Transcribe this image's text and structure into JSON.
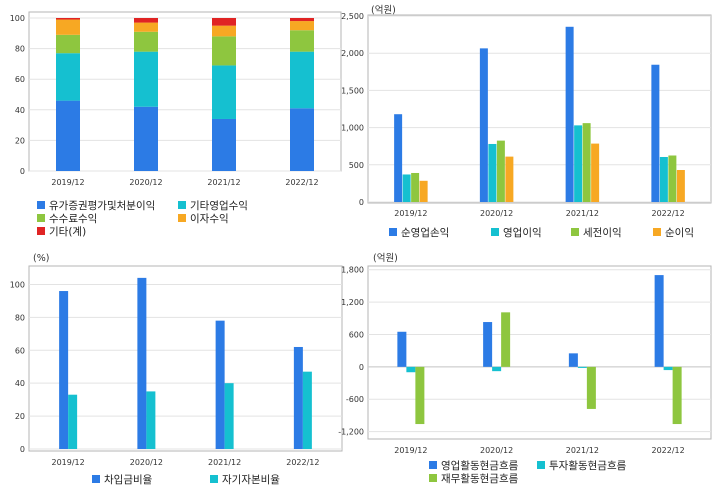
{
  "colors": {
    "blue": "#2c7be5",
    "cyan": "#15c0d0",
    "green": "#8ec63f",
    "orange": "#f7a823",
    "red": "#e02424",
    "grid": "#e3e3e3",
    "frame": "#b5b5b5"
  },
  "chart_data": [
    {
      "type": "bar",
      "stacked": true,
      "title": "",
      "unit": "",
      "categories": [
        "2019/12",
        "2020/12",
        "2021/12",
        "2022/12"
      ],
      "ylim": [
        0,
        100
      ],
      "yticks": [
        0,
        20,
        40,
        60,
        80,
        100
      ],
      "ytick_labels": [
        "0",
        "20",
        "40",
        "60",
        "80",
        "100"
      ],
      "grid": true,
      "legend_position": "bottom",
      "series": [
        {
          "name": "유가증권평가및처분이익",
          "color": "#2c7be5",
          "values": [
            46,
            42,
            34,
            41
          ]
        },
        {
          "name": "기타영업수익",
          "color": "#15c0d0",
          "values": [
            31,
            36,
            35,
            37
          ]
        },
        {
          "name": "수수료수익",
          "color": "#8ec63f",
          "values": [
            12,
            13,
            19,
            14
          ]
        },
        {
          "name": "이자수익",
          "color": "#f7a823",
          "values": [
            10,
            6,
            7,
            6
          ]
        },
        {
          "name": "기타(계)",
          "color": "#e02424",
          "values": [
            1,
            3,
            5,
            2
          ]
        }
      ]
    },
    {
      "type": "bar",
      "title": "",
      "unit": "(억원)",
      "categories": [
        "2019/12",
        "2020/12",
        "2021/12",
        "2022/12"
      ],
      "ylim": [
        0,
        2500
      ],
      "yticks": [
        0,
        500,
        1000,
        1500,
        2000,
        2500
      ],
      "ytick_labels": [
        "0",
        "500",
        "1,000",
        "1,500",
        "2,000",
        "2,500"
      ],
      "grid": true,
      "legend_position": "bottom",
      "series": [
        {
          "name": "순영업손익",
          "color": "#2c7be5",
          "values": [
            1180,
            2065,
            2355,
            1845
          ]
        },
        {
          "name": "영업이익",
          "color": "#15c0d0",
          "values": [
            370,
            780,
            1030,
            605
          ]
        },
        {
          "name": "세전이익",
          "color": "#8ec63f",
          "values": [
            390,
            825,
            1060,
            625
          ]
        },
        {
          "name": "순이익",
          "color": "#f7a823",
          "values": [
            285,
            610,
            785,
            430
          ]
        }
      ]
    },
    {
      "type": "bar",
      "title": "",
      "unit": "(%)",
      "categories": [
        "2019/12",
        "2020/12",
        "2021/12",
        "2022/12"
      ],
      "ylim": [
        0,
        110
      ],
      "yticks": [
        0,
        20,
        40,
        60,
        80,
        100
      ],
      "ytick_labels": [
        "0",
        "20",
        "40",
        "60",
        "80",
        "100"
      ],
      "grid": true,
      "legend_position": "bottom",
      "series": [
        {
          "name": "차입금비율",
          "color": "#2c7be5",
          "values": [
            96,
            104,
            78,
            62
          ]
        },
        {
          "name": "자기자본비율",
          "color": "#15c0d0",
          "values": [
            33,
            35,
            40,
            47
          ]
        }
      ]
    },
    {
      "type": "bar",
      "title": "",
      "unit": "(억원)",
      "categories": [
        "2019/12",
        "2020/12",
        "2021/12",
        "2022/12"
      ],
      "ylim": [
        -1300,
        1850
      ],
      "yticks": [
        -1200,
        -600,
        0,
        600,
        1200,
        1800
      ],
      "ytick_labels": [
        "-1,200",
        "-600",
        "0",
        "600",
        "1,200",
        "1,800"
      ],
      "grid": true,
      "legend_position": "bottom",
      "series": [
        {
          "name": "영업활동현금흐름",
          "color": "#2c7be5",
          "values": [
            650,
            830,
            250,
            1700
          ]
        },
        {
          "name": "투자활동현금흐름",
          "color": "#15c0d0",
          "values": [
            -100,
            -80,
            -20,
            -60
          ]
        },
        {
          "name": "재무활동현금흐름",
          "color": "#8ec63f",
          "values": [
            -1060,
            1010,
            -780,
            -1060
          ]
        }
      ]
    }
  ]
}
